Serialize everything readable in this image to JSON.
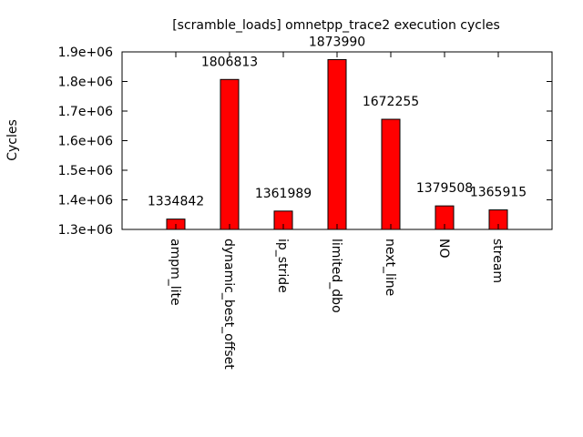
{
  "chart_data": {
    "type": "bar",
    "title": "[scramble_loads] omnetpp_trace2 execution cycles",
    "xlabel": "",
    "ylabel": "Cycles",
    "categories": [
      "ampm_lite",
      "dynamic_best_offset",
      "ip_stride",
      "limited_dbo",
      "next_line",
      "NO",
      "stream"
    ],
    "values": [
      1334842,
      1806813,
      1361989,
      1873990,
      1672255,
      1379508,
      1365915
    ],
    "value_labels": [
      "1334842",
      "1806813",
      "1361989",
      "1873990",
      "1672255",
      "1379508",
      "1365915"
    ],
    "ylim": [
      1300000,
      1900000
    ],
    "yticks": [
      1300000,
      1400000,
      1500000,
      1600000,
      1700000,
      1800000,
      1900000
    ],
    "ytick_labels": [
      "1.3e+06",
      "1.4e+06",
      "1.5e+06",
      "1.6e+06",
      "1.7e+06",
      "1.8e+06",
      "1.9e+06"
    ],
    "bar_color": "#ff0000",
    "grid": false,
    "legend": "none"
  }
}
